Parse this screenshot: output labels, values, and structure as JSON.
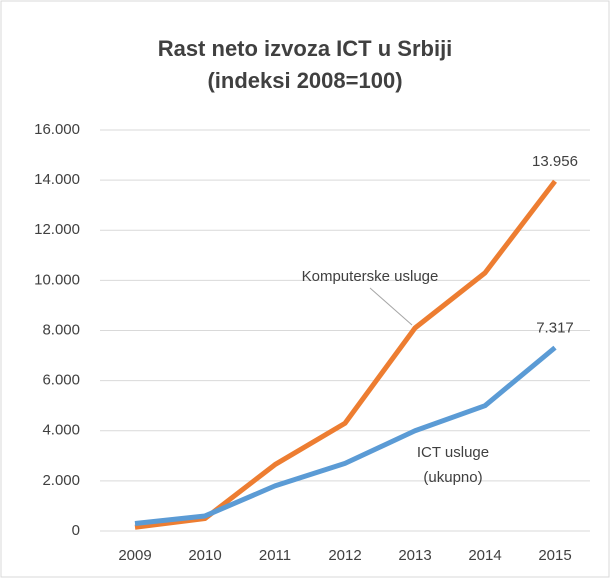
{
  "chart_data": {
    "type": "line",
    "title": "Rast neto izvoza ICT u Srbiji",
    "subtitle": "(indeksi 2008=100)",
    "categories": [
      "2009",
      "2010",
      "2011",
      "2012",
      "2013",
      "2014",
      "2015"
    ],
    "series": [
      {
        "name": "Komputerske usluge",
        "color": "#ed7d31",
        "values": [
          150,
          500,
          2650,
          4300,
          8100,
          10300,
          13956
        ],
        "value_labels": [
          null,
          null,
          null,
          null,
          null,
          null,
          "13.956"
        ]
      },
      {
        "name": "ICT usluge (ukupno)",
        "color": "#5b9bd5",
        "values": [
          300,
          600,
          1800,
          2700,
          4000,
          5000,
          7317
        ],
        "value_labels": [
          null,
          null,
          null,
          null,
          null,
          null,
          "7.317"
        ]
      }
    ],
    "ylim": [
      0,
      16000
    ],
    "yticks": [
      0,
      {
        "value": 2000,
        "label": "2.000"
      },
      {
        "value": 4000,
        "label": "4.000"
      },
      {
        "value": 6000,
        "label": "6.000"
      },
      {
        "value": 8000,
        "label": "8.000"
      },
      {
        "value": 10000,
        "label": "10.000"
      },
      {
        "value": 12000,
        "label": "12.000"
      },
      {
        "value": 14000,
        "label": "14.000"
      },
      {
        "value": 16000,
        "label": "16.000"
      }
    ],
    "grid": true
  }
}
